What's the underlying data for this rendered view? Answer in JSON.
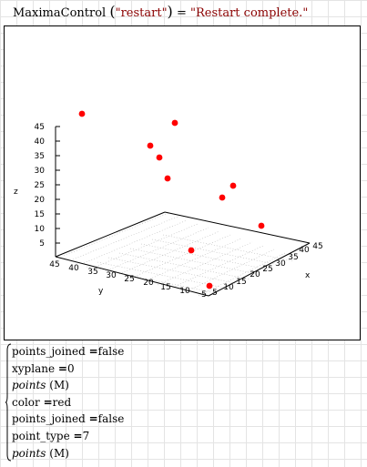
{
  "header": {
    "func_name": "MaximaControl",
    "arg": "\"restart\"",
    "eq": "=",
    "result": "\"Restart complete.\""
  },
  "plot": {
    "x_label": "x",
    "y_label": "y",
    "z_label": "z",
    "z_ticks": [
      "5",
      "10",
      "15",
      "20",
      "25",
      "30",
      "35",
      "40",
      "45"
    ],
    "x_ticks": [
      "5",
      "10",
      "15",
      "20",
      "25",
      "30",
      "35",
      "40",
      "45"
    ],
    "y_ticks": [
      "45",
      "40",
      "35",
      "30",
      "25",
      "20",
      "15",
      "10",
      "5"
    ],
    "point_color": "#ff0000"
  },
  "commands": [
    {
      "name": "points_joined",
      "op": "=",
      "value": "false",
      "italic": false
    },
    {
      "name": "xyplane",
      "op": "=",
      "value": "0",
      "italic": false
    },
    {
      "name": "points",
      "op": "",
      "value": "(M)",
      "italic": true
    },
    {
      "name": "color",
      "op": "=",
      "value": "red",
      "italic": false
    },
    {
      "name": "points_joined",
      "op": "=",
      "value": "false",
      "italic": false
    },
    {
      "name": "point_type",
      "op": "=",
      "value": "7",
      "italic": false
    },
    {
      "name": "points",
      "op": "",
      "value": "(M)",
      "italic": true
    }
  ]
}
